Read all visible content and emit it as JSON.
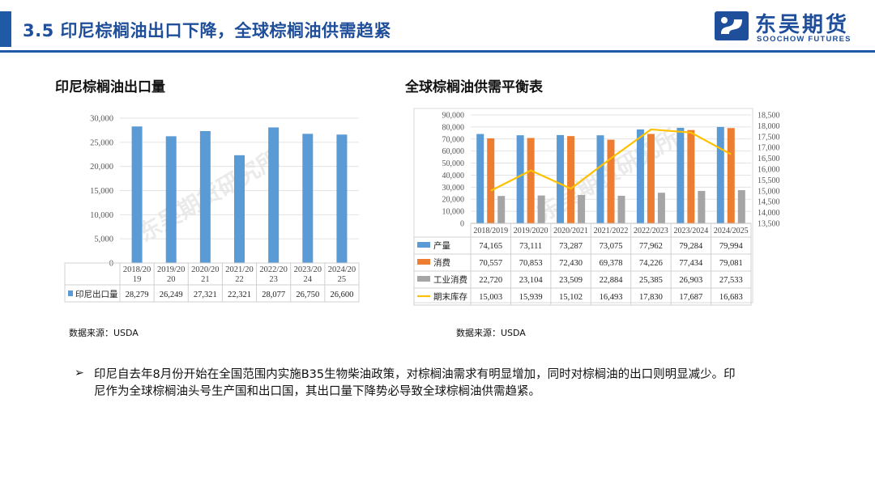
{
  "header": {
    "title": "3.5  印尼棕榈油出口下降，全球棕榈油供需趋紧",
    "logo_cn": "东吴期货",
    "logo_en": "SOOCHOW FUTURES",
    "accent_color": "#1f5aa6"
  },
  "watermark": "东吴期货研究所",
  "left_panel": {
    "title": "印尼棕榈油出口量",
    "source": "数据来源：USDA"
  },
  "right_panel": {
    "title": "全球棕榈油供需平衡表",
    "source": "数据来源：USDA"
  },
  "bullet": {
    "mark": "➢",
    "text": "印尼自去年8月份开始在全国范围内实施B35生物柴油政策，对棕榈油需求有明显增加，同时对棕榈油的出口则明显减少。印尼作为全球棕榈油头号生产国和出口国，其出口量下降势必导致全球棕榈油供需趋紧。"
  },
  "chart_data": [
    {
      "type": "bar",
      "categories": [
        "2018/2019",
        "2019/2020",
        "2020/2021",
        "2021/2022",
        "2022/2023",
        "2023/2024",
        "2024/2025"
      ],
      "category_labels": [
        [
          "2018/20",
          "19"
        ],
        [
          "2019/20",
          "20"
        ],
        [
          "2020/20",
          "21"
        ],
        [
          "2021/20",
          "22"
        ],
        [
          "2022/20",
          "23"
        ],
        [
          "2023/20",
          "24"
        ],
        [
          "2024/20",
          "25"
        ]
      ],
      "series": [
        {
          "name": "印尼出口量",
          "color": "#5b9bd5",
          "values": [
            28279,
            26249,
            27321,
            22321,
            28077,
            26750,
            26600
          ],
          "value_labels": [
            "28,279",
            "26,249",
            "27,321",
            "22,321",
            "28,077",
            "26,750",
            "26,600"
          ]
        }
      ],
      "ylim": [
        0,
        30000
      ],
      "yticks": [
        0,
        5000,
        10000,
        15000,
        20000,
        25000,
        30000
      ],
      "ytick_labels": [
        "0",
        "5,000",
        "10,000",
        "15,000",
        "20,000",
        "25,000",
        "30,000"
      ],
      "grid": true,
      "data_table": true
    },
    {
      "type": "bar",
      "categories": [
        "2018/2019",
        "2019/2020",
        "2020/2021",
        "2021/2022",
        "2022/2023",
        "2023/2024",
        "2024/2025"
      ],
      "series": [
        {
          "name": "产量",
          "type": "bar",
          "axis": "left",
          "color": "#5b9bd5",
          "values": [
            74165,
            73111,
            73287,
            73075,
            77962,
            79284,
            79994
          ],
          "value_labels": [
            "74,165",
            "73,111",
            "73,287",
            "73,075",
            "77,962",
            "79,284",
            "79,994"
          ]
        },
        {
          "name": "消费",
          "type": "bar",
          "axis": "left",
          "color": "#ed7d31",
          "values": [
            70557,
            70853,
            72430,
            69378,
            74226,
            77434,
            79081
          ],
          "value_labels": [
            "70,557",
            "70,853",
            "72,430",
            "69,378",
            "74,226",
            "77,434",
            "79,081"
          ]
        },
        {
          "name": "工业消费",
          "type": "bar",
          "axis": "left",
          "color": "#a5a5a5",
          "values": [
            22720,
            23104,
            23509,
            22884,
            25385,
            26903,
            27533
          ],
          "value_labels": [
            "22,720",
            "23,104",
            "23,509",
            "22,884",
            "25,385",
            "26,903",
            "27,533"
          ]
        },
        {
          "name": "期末库存",
          "type": "line",
          "axis": "right",
          "color": "#ffc000",
          "values": [
            15003,
            15939,
            15102,
            16493,
            17830,
            17687,
            16683
          ],
          "value_labels": [
            "15,003",
            "15,939",
            "15,102",
            "16,493",
            "17,830",
            "17,687",
            "16,683"
          ]
        }
      ],
      "ylim": [
        0,
        90000
      ],
      "yticks": [
        0,
        10000,
        20000,
        30000,
        40000,
        50000,
        60000,
        70000,
        80000,
        90000
      ],
      "ytick_labels": [
        "0",
        "10,000",
        "20,000",
        "30,000",
        "40,000",
        "50,000",
        "60,000",
        "70,000",
        "80,000",
        "90,000"
      ],
      "y2lim": [
        13500,
        18500
      ],
      "y2ticks": [
        13500,
        14000,
        14500,
        15000,
        15500,
        16000,
        16500,
        17000,
        17500,
        18000,
        18500
      ],
      "y2tick_labels": [
        "13,500",
        "14,000",
        "14,500",
        "15,000",
        "15,500",
        "16,000",
        "16,500",
        "17,000",
        "17,500",
        "18,000",
        "18,500"
      ],
      "grid": true,
      "data_table": true
    }
  ]
}
